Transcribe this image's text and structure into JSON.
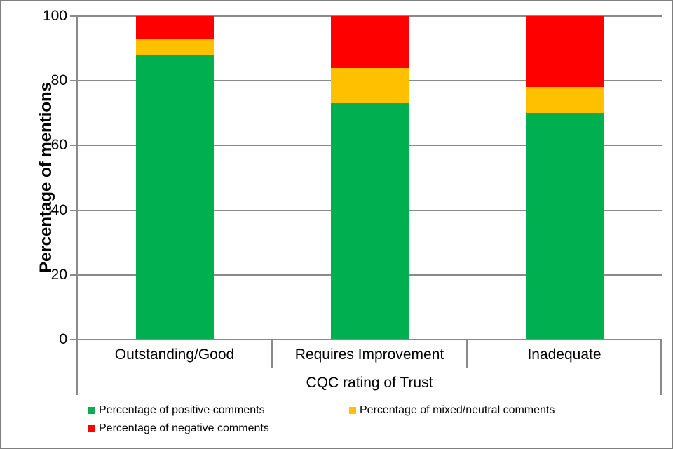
{
  "chart_data": {
    "type": "bar",
    "stacked": true,
    "title": "",
    "xlabel": "CQC rating of Trust",
    "ylabel": "Percentage of mentions",
    "categories": [
      "Outstanding/Good",
      "Requires Improvement",
      "Inadequate"
    ],
    "series": [
      {
        "name": "Percentage of positive comments",
        "color": "#00B050",
        "values": [
          88,
          73,
          70
        ]
      },
      {
        "name": "Percentage of mixed/neutral comments",
        "color": "#FFC000",
        "values": [
          5,
          11,
          8
        ]
      },
      {
        "name": "Percentage of negative comments",
        "color": "#FF0000",
        "values": [
          7,
          16,
          22
        ]
      }
    ],
    "ylim": [
      0,
      100
    ],
    "yticks": [
      0,
      20,
      40,
      60,
      80,
      100
    ],
    "grid": "horizontal",
    "legend_position": "bottom"
  },
  "colors": {
    "positive": "#00B050",
    "mixed_neutral": "#FFC000",
    "negative": "#FF0000",
    "axis_gray": "#8a8a8a",
    "background": "#ffffff",
    "border": "#7f7f7f"
  }
}
